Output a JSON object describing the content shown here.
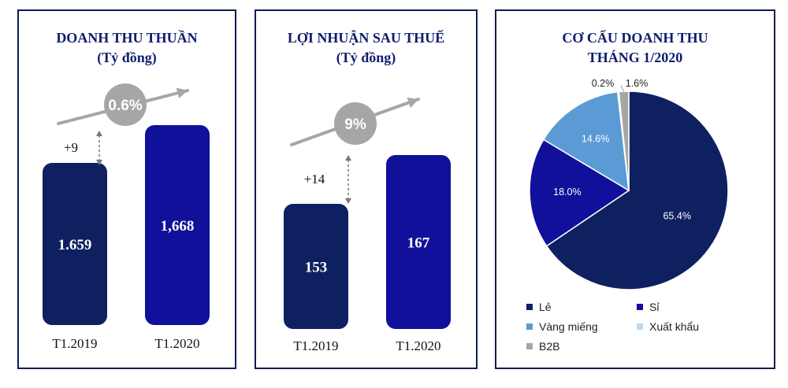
{
  "revenue": {
    "title_line1": "DOANH THU THUẦN",
    "title_line2": "(Tỷ đồng)",
    "growth_label": "0.6%",
    "diff_label": "+9"
  },
  "profit": {
    "title_line1": "LỢI NHUẬN SAU THUẾ",
    "title_line2": "(Tỷ đồng)",
    "growth_label": "9%",
    "diff_label": "+14"
  },
  "pie": {
    "title_line1": "CƠ CẤU DOANH THU",
    "title_line2": "THÁNG 1/2020"
  },
  "colors": {
    "bar_2019": "#0f2060",
    "bar_2020": "#10109a",
    "growth_circle": "#a6a6a6",
    "arrow": "#a6a6a6"
  },
  "chart_data": [
    {
      "type": "bar",
      "title": "DOANH THU THUẦN",
      "subtitle": "(Tỷ đồng)",
      "categories": [
        "T1.2019",
        "T1.2020"
      ],
      "values": [
        1659,
        1668
      ],
      "value_labels": [
        "1.659",
        "1,668"
      ],
      "bar_colors": [
        "#0f2060",
        "#10109a"
      ]
    },
    {
      "type": "bar",
      "title": "LỢI NHUẬN SAU THUẾ",
      "subtitle": "(Tỷ đồng)",
      "categories": [
        "T1.2019",
        "T1.2020"
      ],
      "values": [
        153,
        167
      ],
      "value_labels": [
        "153",
        "167"
      ],
      "bar_colors": [
        "#0f2060",
        "#10109a"
      ]
    },
    {
      "type": "pie",
      "title": "CƠ CẤU DOANH THU THÁNG 1/2020",
      "slices": [
        {
          "name": "Lẻ",
          "value": 65.4,
          "label": "65.4%",
          "color": "#0f2060"
        },
        {
          "name": "Sỉ",
          "value": 18.0,
          "label": "18.0%",
          "color": "#10109a"
        },
        {
          "name": "Vàng miếng",
          "value": 14.6,
          "label": "14.6%",
          "color": "#5b9bd5"
        },
        {
          "name": "Xuất khẩu",
          "value": 0.2,
          "label": "0.2%",
          "color": "#bdd7ee"
        },
        {
          "name": "B2B",
          "value": 1.6,
          "label": "1.6%",
          "color": "#a6a6a6"
        }
      ],
      "legend_position": "bottom"
    }
  ]
}
